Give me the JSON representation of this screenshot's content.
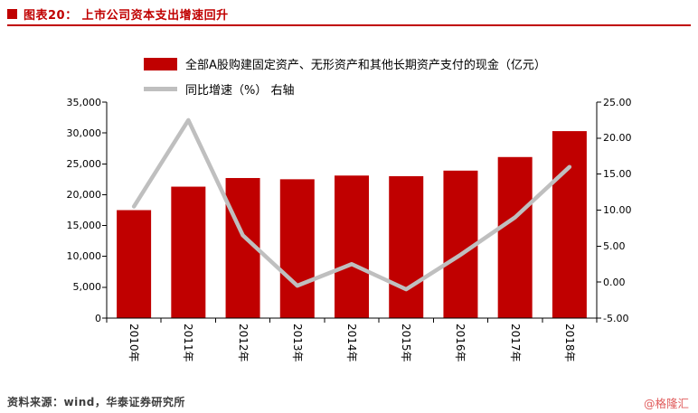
{
  "header": {
    "title": "图表20：  上市公司资本支出增速回升"
  },
  "legend": {
    "bar_label": "全部A股购建固定资产、无形资产和其他长期资产支付的现金（亿元）",
    "line_label": "同比增速（%）  右轴"
  },
  "footer": {
    "source": "资料来源：wind，华泰证券研究所",
    "watermark": "@格隆汇"
  },
  "colors": {
    "accent": "#C00000",
    "bar": "#C00000",
    "line": "#BFBFBF",
    "axis": "#000000",
    "watermark": "#E05C5C"
  },
  "chart_data": {
    "type": "bar+line",
    "title": "上市公司资本支出增速回升",
    "categories": [
      "2010年",
      "2011年",
      "2012年",
      "2013年",
      "2014年",
      "2015年",
      "2016年",
      "2017年",
      "2018年"
    ],
    "series": [
      {
        "name": "全部A股购建固定资产、无形资产和其他长期资产支付的现金（亿元）",
        "type": "bar",
        "axis": "left",
        "values": [
          17500,
          21300,
          22700,
          22500,
          23100,
          23000,
          23900,
          26100,
          30300
        ]
      },
      {
        "name": "同比增速（%） 右轴",
        "type": "line",
        "axis": "right",
        "values": [
          10.5,
          22.5,
          6.5,
          -0.5,
          2.5,
          -1.0,
          3.8,
          9.0,
          16.0
        ]
      }
    ],
    "left_axis": {
      "min": 0,
      "max": 35000,
      "step": 5000,
      "tick_labels_top_to_bottom": [
        "35,000",
        "30,000",
        "25,000",
        "20,000",
        "15,000",
        "10,000",
        "5,000",
        "0"
      ]
    },
    "right_axis": {
      "min": -5,
      "max": 25,
      "step": 5,
      "tick_labels_top_to_bottom": [
        "25.00",
        "20.00",
        "15.00",
        "10.00",
        "5.00",
        "0.00",
        "-5.00"
      ]
    },
    "grid": "off",
    "legend_position": "top"
  }
}
